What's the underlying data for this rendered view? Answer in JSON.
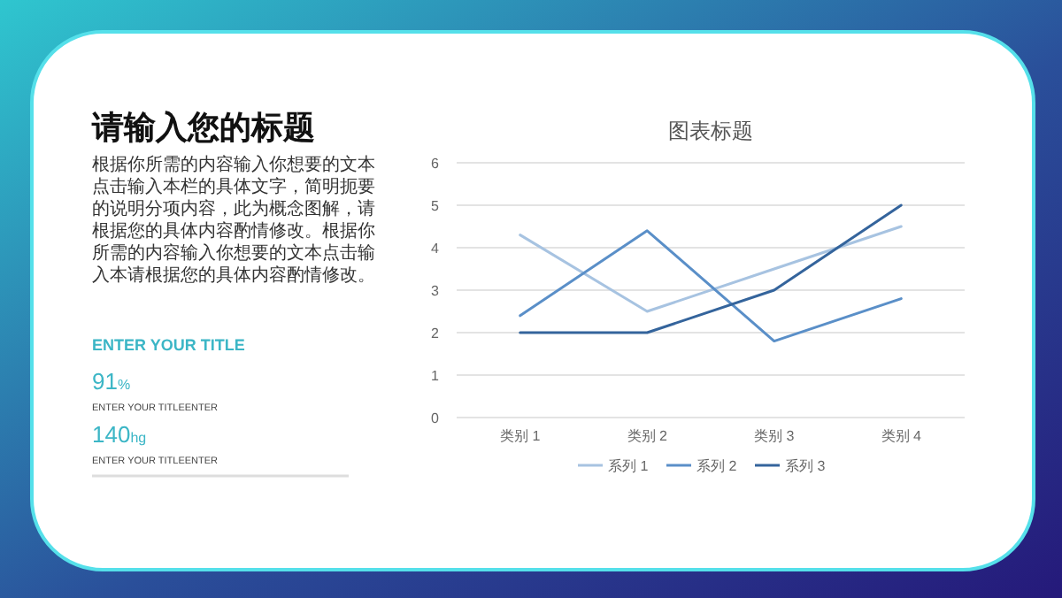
{
  "chart_data": [
    {
      "type": "other",
      "title": "请输入您的标题",
      "annotations": [
        "根据你所需的内容输入你想要的文本点击输入本栏的具体文字，简明扼要的说明分项内容，此为概念图解，请根据您的具体内容酌情修改。根据你所需的内容输入你想要的文本点击输入本请根据您的具体内容酌情修改。",
        "ENTER YOUR TITLE",
        "91%",
        "ENTER YOUR TITLEENTER",
        "140hg",
        "ENTER YOUR TITLEENTER"
      ]
    },
    {
      "type": "line",
      "title": "图表标题",
      "categories": [
        "类别 1",
        "类别 2",
        "类别 3",
        "类别 4"
      ],
      "series": [
        {
          "name": "系列 1",
          "color": "#a7c3e1",
          "values": [
            4.3,
            2.5,
            3.5,
            4.5
          ]
        },
        {
          "name": "系列 2",
          "color": "#5a8fc8",
          "values": [
            2.4,
            4.4,
            1.8,
            2.8
          ]
        },
        {
          "name": "系列 3",
          "color": "#34649c",
          "values": [
            2,
            2,
            3,
            5
          ]
        }
      ],
      "ylim": [
        0,
        6
      ],
      "yticks": [
        0,
        1,
        2,
        3,
        4,
        5,
        6
      ],
      "grid": "y",
      "legend": "bottom"
    }
  ]
}
